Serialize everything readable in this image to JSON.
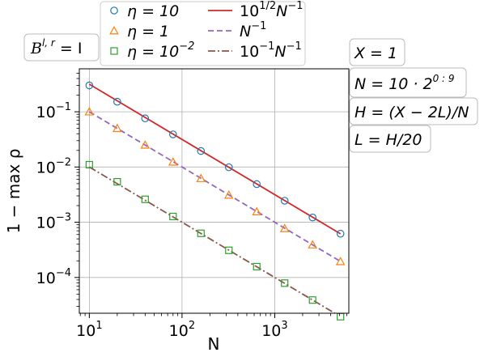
{
  "chart_data": {
    "type": "scatter",
    "xlabel": "N",
    "ylabel": "1 − max ρ",
    "xscale": "log",
    "yscale": "log",
    "xlim": [
      7.8,
      6300
    ],
    "ylim": [
      2.25e-05,
      0.6
    ],
    "grid": true,
    "legend_placement": "top-center",
    "x_ticks": [
      {
        "value": 10,
        "base": "10",
        "exp": "1"
      },
      {
        "value": 100,
        "base": "10",
        "exp": "2"
      },
      {
        "value": 1000,
        "base": "10",
        "exp": "3"
      }
    ],
    "y_ticks": [
      {
        "value": 0.1,
        "base": "10",
        "exp": "−1"
      },
      {
        "value": 0.01,
        "base": "10",
        "exp": "−2"
      },
      {
        "value": 0.001,
        "base": "10",
        "exp": "−3"
      },
      {
        "value": 0.0001,
        "base": "10",
        "exp": "−4"
      }
    ],
    "x": [
      10,
      20,
      40,
      80,
      160,
      320,
      640,
      1280,
      2560,
      5120
    ],
    "series": [
      {
        "name": "η = 10",
        "legend_main": "η = 10",
        "legend_sup": "",
        "kind": "markers",
        "marker": "circle",
        "color": "#1f77b4",
        "values": [
          0.3,
          0.152,
          0.076,
          0.039,
          0.0195,
          0.0099,
          0.0049,
          0.00245,
          0.00122,
          0.00062
        ]
      },
      {
        "name": "η = 1",
        "legend_main": "η = 1",
        "legend_sup": "",
        "kind": "markers",
        "marker": "triangle",
        "color": "#ff7f0e",
        "values": [
          0.1,
          0.05,
          0.025,
          0.0123,
          0.0062,
          0.0031,
          0.00155,
          0.00077,
          0.00039,
          0.000194
        ]
      },
      {
        "name": "η = 10⁻²",
        "legend_main": "η = 10",
        "legend_sup": "−2",
        "kind": "markers",
        "marker": "square",
        "color": "#2ca02c",
        "values": [
          0.011,
          0.0054,
          0.0026,
          0.00127,
          0.00063,
          0.00031,
          0.000157,
          7.9e-05,
          3.9e-05,
          1.95e-05
        ]
      }
    ],
    "reference_lines": [
      {
        "name": "10^{1/2} N^{-1}",
        "legend_main": "10",
        "legend_sup1": "1/2",
        "legend_mid": "N",
        "legend_sup2": "−1",
        "coefficient": 3.1623,
        "exponent": -1,
        "color": "#d62728",
        "dash": "solid"
      },
      {
        "name": "N^{-1}",
        "legend_main": "",
        "legend_sup1": "",
        "legend_mid": "N",
        "legend_sup2": "−1",
        "coefficient": 1,
        "exponent": -1,
        "color": "#9467bd",
        "dash": "dashed"
      },
      {
        "name": "10^{-1} N^{-1}",
        "legend_main": "10",
        "legend_sup1": "−1",
        "legend_mid": "N",
        "legend_sup2": "−1",
        "coefficient": 0.1,
        "exponent": -1,
        "color": "#8c564b",
        "dash": "dashdot"
      }
    ],
    "annotations": {
      "boundary": {
        "main": "B",
        "sup": "l, r",
        "rest": " = I"
      },
      "x": "X = 1",
      "n": {
        "main": "N = 10 · 2",
        "sup": "0 : 9"
      },
      "h": "H = (X − 2L)/N",
      "l": "L = H/20"
    }
  }
}
